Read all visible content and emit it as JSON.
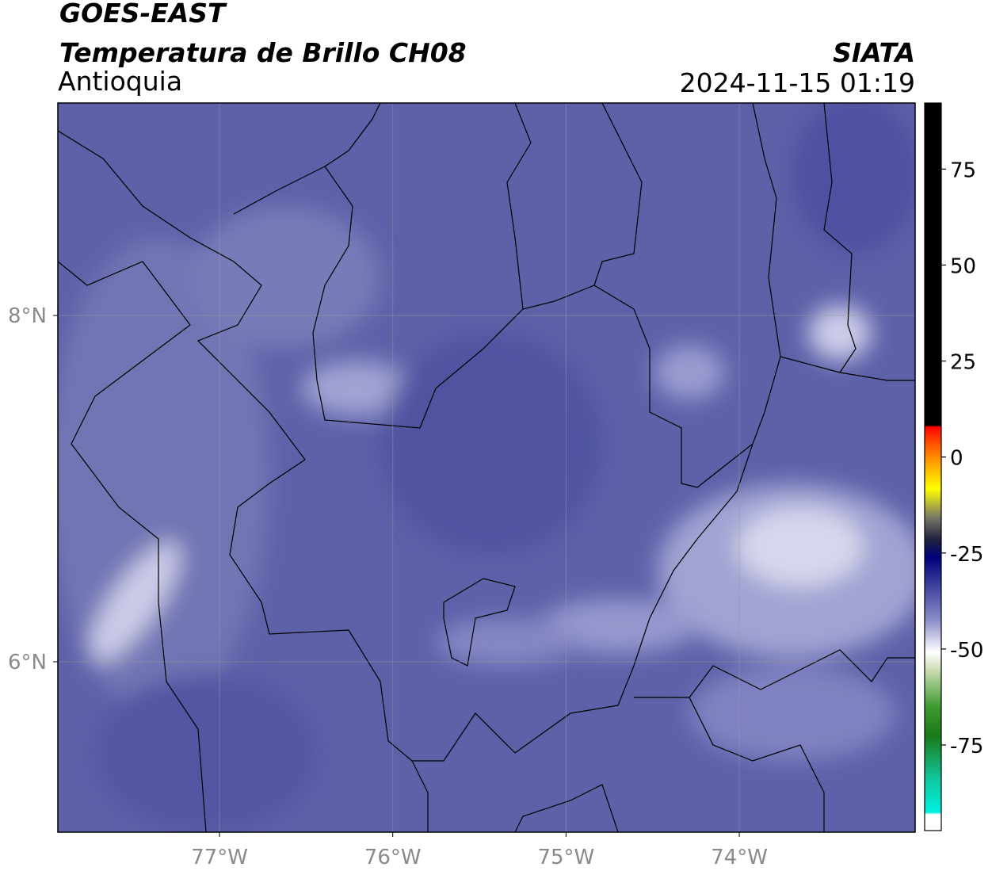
{
  "header": {
    "title": "GOES-EAST",
    "subtitle": "Temperatura de Brillo CH08",
    "region": "Antioquia",
    "source": "SIATA",
    "datetime": "2024-11-15 01:19"
  },
  "map": {
    "xlim": [
      -77.933,
      -72.985
    ],
    "ylim": [
      5.016,
      9.227
    ],
    "xticks": [
      {
        "value": -77,
        "label": "77°W"
      },
      {
        "value": -76,
        "label": "76°W"
      },
      {
        "value": -75,
        "label": "75°W"
      },
      {
        "value": -74,
        "label": "74°W"
      }
    ],
    "yticks": [
      {
        "value": 6,
        "label": "6°N"
      },
      {
        "value": 8,
        "label": "8°N"
      }
    ],
    "grid": true
  },
  "colorbar": {
    "lim": [
      -97.3,
      92.2
    ],
    "ticks": [
      75,
      50,
      25,
      0,
      -25,
      -50,
      -75
    ]
  }
}
